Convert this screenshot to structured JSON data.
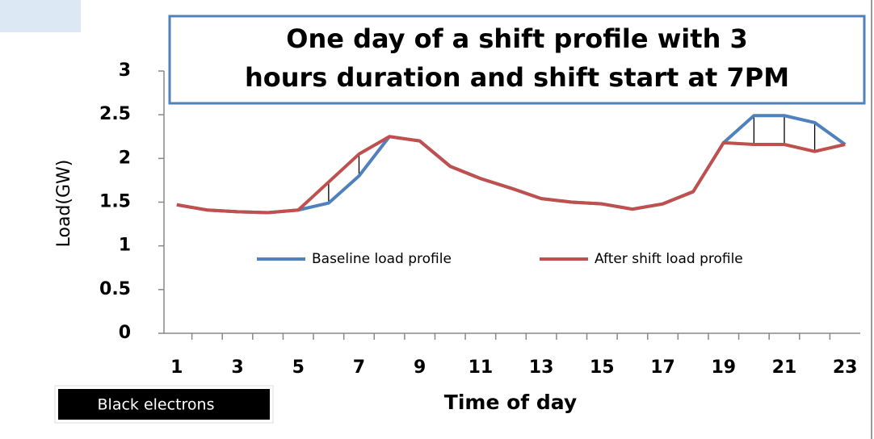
{
  "chart_data": {
    "type": "line",
    "title": [
      "One day of a shift profile with 3",
      "hours duration and shift start at 7PM"
    ],
    "xlabel": "Time of day",
    "ylabel": "Load(GW)",
    "watermark": "Black electrons",
    "x": [
      1,
      2,
      3,
      4,
      5,
      6,
      7,
      8,
      9,
      10,
      11,
      12,
      13,
      14,
      15,
      16,
      17,
      18,
      19,
      20,
      21,
      22,
      23
    ],
    "xlim": [
      0.5,
      23.5
    ],
    "xticks": [
      1,
      3,
      5,
      7,
      9,
      11,
      13,
      15,
      17,
      19,
      21,
      23
    ],
    "ylim": [
      0,
      3
    ],
    "yticks": [
      0,
      0.5,
      1,
      1.5,
      2,
      2.5,
      3
    ],
    "grid": false,
    "legend": "inside-center",
    "series": [
      {
        "name": "Baseline load profile",
        "color": "#4f81bd",
        "values": [
          1.47,
          1.41,
          1.39,
          1.38,
          1.41,
          1.49,
          1.8,
          2.25,
          2.2,
          1.91,
          1.77,
          1.66,
          1.54,
          1.5,
          1.48,
          1.42,
          1.48,
          1.62,
          2.18,
          2.49,
          2.49,
          2.41,
          2.16
        ]
      },
      {
        "name": "After shift load profile",
        "color": "#c0504d",
        "values": [
          1.47,
          1.41,
          1.39,
          1.38,
          1.41,
          1.73,
          2.05,
          2.25,
          2.2,
          1.91,
          1.77,
          1.66,
          1.54,
          1.5,
          1.48,
          1.42,
          1.48,
          1.62,
          2.18,
          2.16,
          2.16,
          2.08,
          2.16
        ]
      }
    ]
  }
}
